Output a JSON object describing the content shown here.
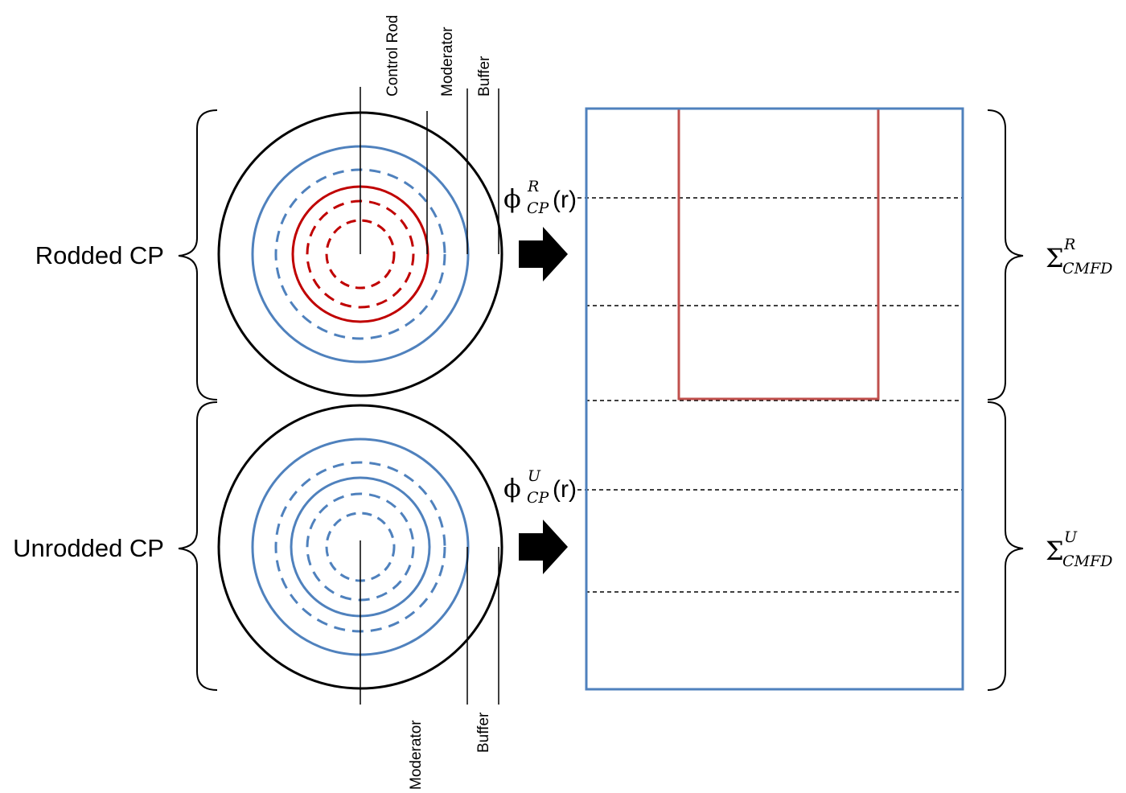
{
  "labels": {
    "rodded_cp": "Rodded CP",
    "unrodded_cp": "Unrodded CP",
    "control_rod": "Control Rod",
    "moderator_top": "Moderator",
    "buffer_top": "Buffer",
    "moderator_bottom": "Moderator",
    "buffer_bottom": "Buffer"
  },
  "flux_rodded": {
    "base": "ϕ",
    "sup": "R",
    "sub": "CP",
    "arg": "(r)"
  },
  "flux_unrodded": {
    "base": "ϕ",
    "sup": "U",
    "sub": "CP",
    "arg": "(r)"
  },
  "xs_rodded": {
    "base": "Σ",
    "sup": "R",
    "sub": "CMFD"
  },
  "xs_unrodded": {
    "base": "Σ",
    "sup": "U",
    "sub": "CMFD"
  },
  "colors": {
    "outline": "#000000",
    "blue": "#4f81bd",
    "red": "#c00000",
    "rod_box": "#c0504d"
  }
}
